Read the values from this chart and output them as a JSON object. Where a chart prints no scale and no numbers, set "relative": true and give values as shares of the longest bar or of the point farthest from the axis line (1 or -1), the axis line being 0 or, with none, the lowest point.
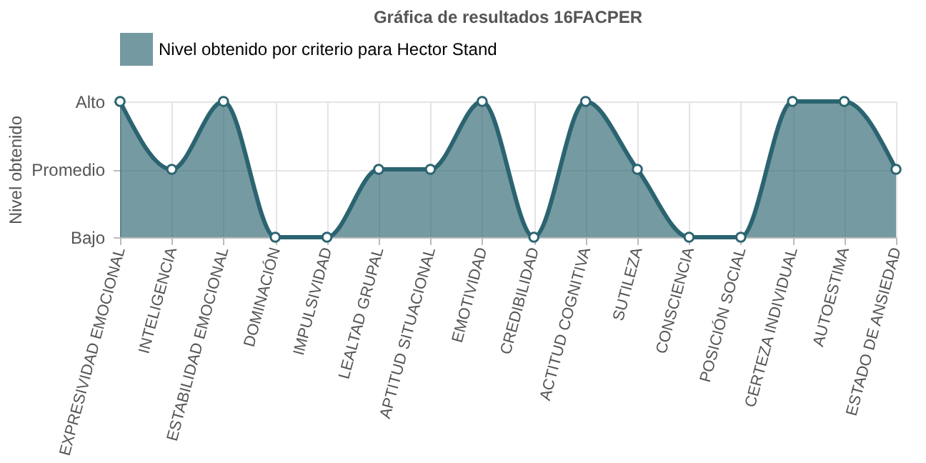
{
  "chart_data": {
    "type": "area",
    "title": "Gráfica de resultados 16FACPER",
    "ylabel": "Nivel obtenido",
    "categories": [
      "EXPRESIVIDAD EMOCIONAL",
      "INTELIGENCIA",
      "ESTABILIDAD EMOCIONAL",
      "DOMINACIÓN",
      "IMPULSIVIDAD",
      "LEALTAD GRUPAL",
      "APTITUD SITUACIONAL",
      "EMOTIVIDAD",
      "CREDIBILIDAD",
      "ACTITUD COGNITIVA",
      "SUTILEZA",
      "CONSCIENCIA",
      "POSICIÓN SOCIAL",
      "CERTEZA INDIVIDUAL",
      "AUTOESTIMA",
      "ESTADO DE ANSIEDAD"
    ],
    "series": [
      {
        "name": "Nivel obtenido por criterio para Hector Stand",
        "color": "#2b6470",
        "values": [
          1,
          0.5,
          1,
          0,
          0,
          0.5,
          0.5,
          1,
          0,
          1,
          0.5,
          0,
          0,
          1,
          1,
          0.5
        ]
      }
    ],
    "relative": true,
    "y_categories": [
      "Alto",
      "Promedio",
      "Bajo"
    ],
    "grid": true,
    "legend": "top",
    "marker": "circle",
    "line_style": "solid"
  }
}
